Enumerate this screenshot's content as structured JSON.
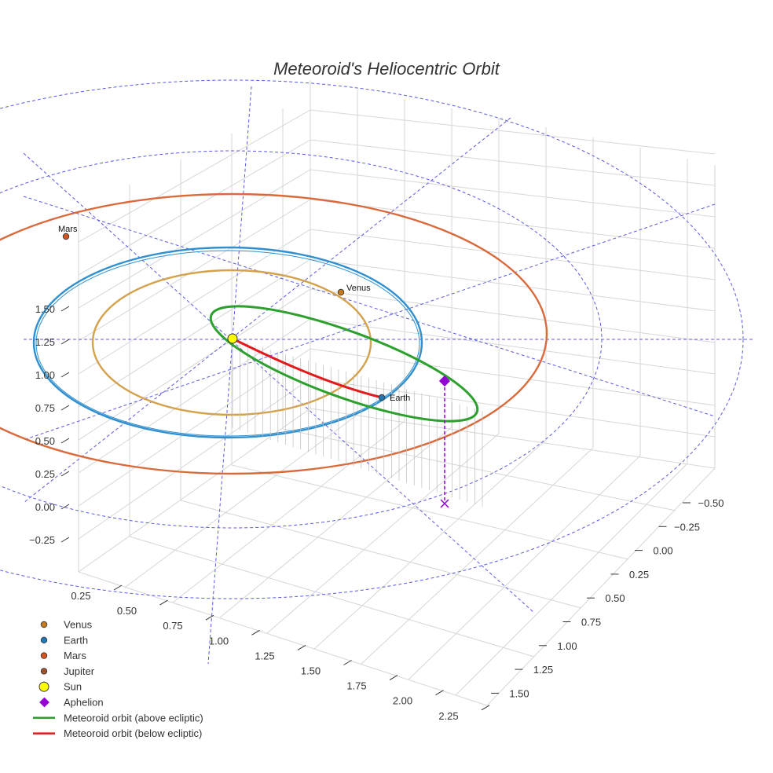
{
  "chart_data": {
    "type": "3d-scatter-line",
    "title": "Meteoroid's Heliocentric Orbit",
    "axes": {
      "x": {
        "ticks": [
          "0.25",
          "0.50",
          "0.75",
          "1.00",
          "1.25",
          "1.50",
          "1.75",
          "2.00",
          "2.25"
        ]
      },
      "y": {
        "ticks": [
          "−0.50",
          "−0.25",
          "0.00",
          "0.25",
          "0.50",
          "0.75",
          "1.00",
          "1.25",
          "1.50"
        ]
      },
      "z": {
        "ticks": [
          "−0.25",
          "0.00",
          "0.25",
          "0.50",
          "0.75",
          "1.00",
          "1.25",
          "1.50"
        ]
      }
    },
    "planets": [
      {
        "name": "Venus",
        "label": "Venus",
        "color": "#c47a1e"
      },
      {
        "name": "Earth",
        "label": "Earth",
        "color": "#1f77b4"
      },
      {
        "name": "Mars",
        "label": "Mars",
        "color": "#d2541e"
      },
      {
        "name": "Jupiter",
        "label": "",
        "color": "#a0522d"
      }
    ],
    "sun": {
      "name": "Sun",
      "color": "#ffff00"
    },
    "aphelion": {
      "name": "Aphelion",
      "color": "#9400d3"
    },
    "orbits": [
      {
        "name": "Meteoroid orbit (above ecliptic)",
        "color": "#2ca02c"
      },
      {
        "name": "Meteoroid orbit (below ecliptic)",
        "color": "#e31a1c"
      }
    ],
    "orbit_colors": {
      "venus": "#d4a24c",
      "earth": "#2f8fcf",
      "mars": "#d96a3c",
      "grid_rings": "#5a5ae0"
    },
    "legend": {
      "position": "bottom-left",
      "entries": [
        {
          "label": "Venus",
          "color": "#c47a1e",
          "marker": "circle"
        },
        {
          "label": "Earth",
          "color": "#1f77b4",
          "marker": "circle"
        },
        {
          "label": "Mars",
          "color": "#d2541e",
          "marker": "circle"
        },
        {
          "label": "Jupiter",
          "color": "#a0522d",
          "marker": "circle"
        },
        {
          "label": "Sun",
          "color": "#ffff00",
          "marker": "circle-large"
        },
        {
          "label": "Aphelion",
          "color": "#9400d3",
          "marker": "diamond"
        },
        {
          "label": "Meteoroid orbit (above ecliptic)",
          "color": "#2ca02c",
          "marker": "line"
        },
        {
          "label": "Meteoroid orbit (below ecliptic)",
          "color": "#e31a1c",
          "marker": "line"
        }
      ]
    }
  }
}
